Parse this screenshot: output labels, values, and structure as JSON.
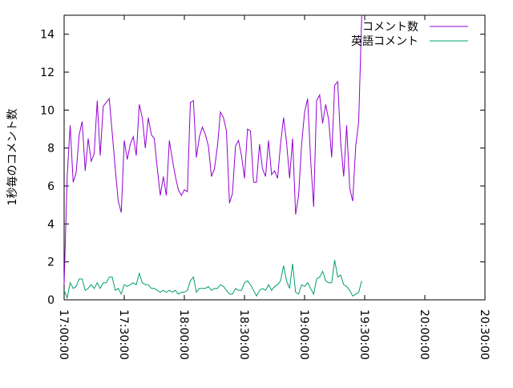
{
  "chart_data": {
    "type": "line",
    "title": "",
    "xlabel": "",
    "ylabel": "1秒毎のコメント数",
    "ylim": [
      0,
      15
    ],
    "xlim": [
      "17:00:00",
      "20:30:00"
    ],
    "x_ticks": [
      "17:00:00",
      "17:30:00",
      "18:00:00",
      "18:30:00",
      "19:00:00",
      "19:30:00",
      "20:00:00",
      "20:30:00"
    ],
    "y_ticks": [
      "0",
      "2",
      "4",
      "6",
      "8",
      "10",
      "12",
      "14"
    ],
    "grid": false,
    "legend_position": "top-right",
    "x_interval_minutes": 1.5,
    "series": [
      {
        "name": "コメント数",
        "color": "#9400d3",
        "values": [
          0.8,
          6.5,
          9.2,
          6.2,
          6.7,
          8.7,
          9.4,
          6.8,
          8.5,
          7.3,
          7.7,
          10.5,
          7.6,
          10.2,
          10.4,
          10.6,
          8.8,
          6.9,
          5.2,
          4.6,
          8.4,
          7.4,
          8.2,
          8.6,
          7.6,
          10.3,
          9.6,
          8.0,
          9.6,
          8.7,
          8.5,
          6.9,
          5.5,
          6.5,
          5.5,
          8.4,
          7.4,
          6.5,
          5.8,
          5.5,
          5.8,
          5.7,
          10.4,
          10.5,
          7.5,
          8.6,
          9.1,
          8.7,
          8.1,
          6.5,
          6.9,
          8.1,
          9.9,
          9.6,
          8.9,
          5.1,
          5.6,
          8.1,
          8.4,
          7.6,
          6.4,
          9.0,
          8.9,
          6.2,
          6.2,
          8.2,
          6.9,
          6.5,
          8.4,
          6.6,
          6.8,
          6.4,
          8.2,
          9.6,
          8.3,
          6.4,
          8.5,
          4.5,
          5.5,
          8.2,
          9.9,
          10.6,
          7.4,
          4.9,
          10.5,
          10.8,
          9.3,
          10.3,
          9.5,
          7.5,
          11.3,
          11.5,
          8.3,
          6.5,
          9.2,
          5.9,
          5.2,
          8.1,
          9.4,
          15.2
        ]
      },
      {
        "name": "英語コメント",
        "color": "#009e73",
        "values": [
          0.5,
          0.1,
          0.9,
          0.6,
          0.7,
          1.1,
          1.1,
          0.5,
          0.6,
          0.8,
          0.6,
          0.9,
          0.6,
          0.9,
          0.9,
          1.2,
          1.2,
          0.5,
          0.6,
          0.3,
          0.8,
          0.7,
          0.8,
          0.9,
          0.8,
          1.4,
          0.9,
          0.8,
          0.8,
          0.6,
          0.6,
          0.5,
          0.4,
          0.5,
          0.4,
          0.5,
          0.4,
          0.5,
          0.3,
          0.4,
          0.4,
          0.5,
          1.0,
          1.2,
          0.4,
          0.6,
          0.6,
          0.6,
          0.7,
          0.5,
          0.6,
          0.6,
          0.8,
          0.7,
          0.5,
          0.3,
          0.3,
          0.6,
          0.5,
          0.5,
          0.9,
          1.0,
          0.8,
          0.5,
          0.2,
          0.5,
          0.6,
          0.5,
          0.8,
          0.5,
          0.7,
          0.8,
          1.0,
          1.8,
          1.0,
          0.6,
          1.9,
          0.4,
          0.3,
          0.8,
          0.7,
          0.9,
          0.6,
          0.3,
          1.1,
          1.2,
          1.5,
          1.0,
          0.9,
          0.9,
          2.1,
          1.2,
          1.3,
          0.8,
          0.7,
          0.5,
          0.2,
          0.3,
          0.4,
          1.0
        ]
      }
    ]
  }
}
